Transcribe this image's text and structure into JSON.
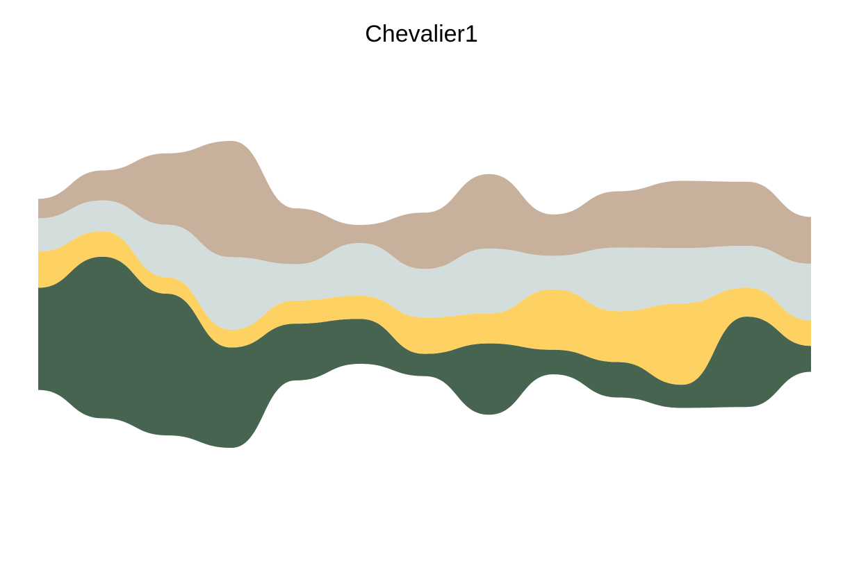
{
  "chart_data": {
    "type": "area",
    "subtype": "streamgraph",
    "title": "Chevalier1",
    "xlabel": "",
    "ylabel": "",
    "grid": false,
    "legend": "none",
    "axes_visible": false,
    "x": [
      0,
      1,
      2,
      3,
      4,
      5,
      6,
      7,
      8,
      9,
      10,
      11,
      12
    ],
    "series": [
      {
        "color": "#46644F",
        "values": [
          22.5,
          35.6,
          31.2,
          22.1,
          12.5,
          9.9,
          4.9,
          15.7,
          5.4,
          7.8,
          5.1,
          19.9,
          5.7
        ]
      },
      {
        "color": "#FDD262",
        "values": [
          8.0,
          5.6,
          3.6,
          3.9,
          5.1,
          5.1,
          8.0,
          6.6,
          13.3,
          11.2,
          17.9,
          6.4,
          5.6
        ]
      },
      {
        "color": "#D3DDDC",
        "values": [
          7.3,
          6.8,
          11.6,
          16.0,
          8.0,
          11.6,
          10.7,
          14.3,
          7.4,
          14.0,
          12.2,
          9.2,
          12.5
        ]
      },
      {
        "color": "#C7B19C",
        "values": [
          4.3,
          6.6,
          15.7,
          25.6,
          12.3,
          4.0,
          12.4,
          16.4,
          9.1,
          12.4,
          14.8,
          14.1,
          10.3
        ]
      }
    ]
  }
}
